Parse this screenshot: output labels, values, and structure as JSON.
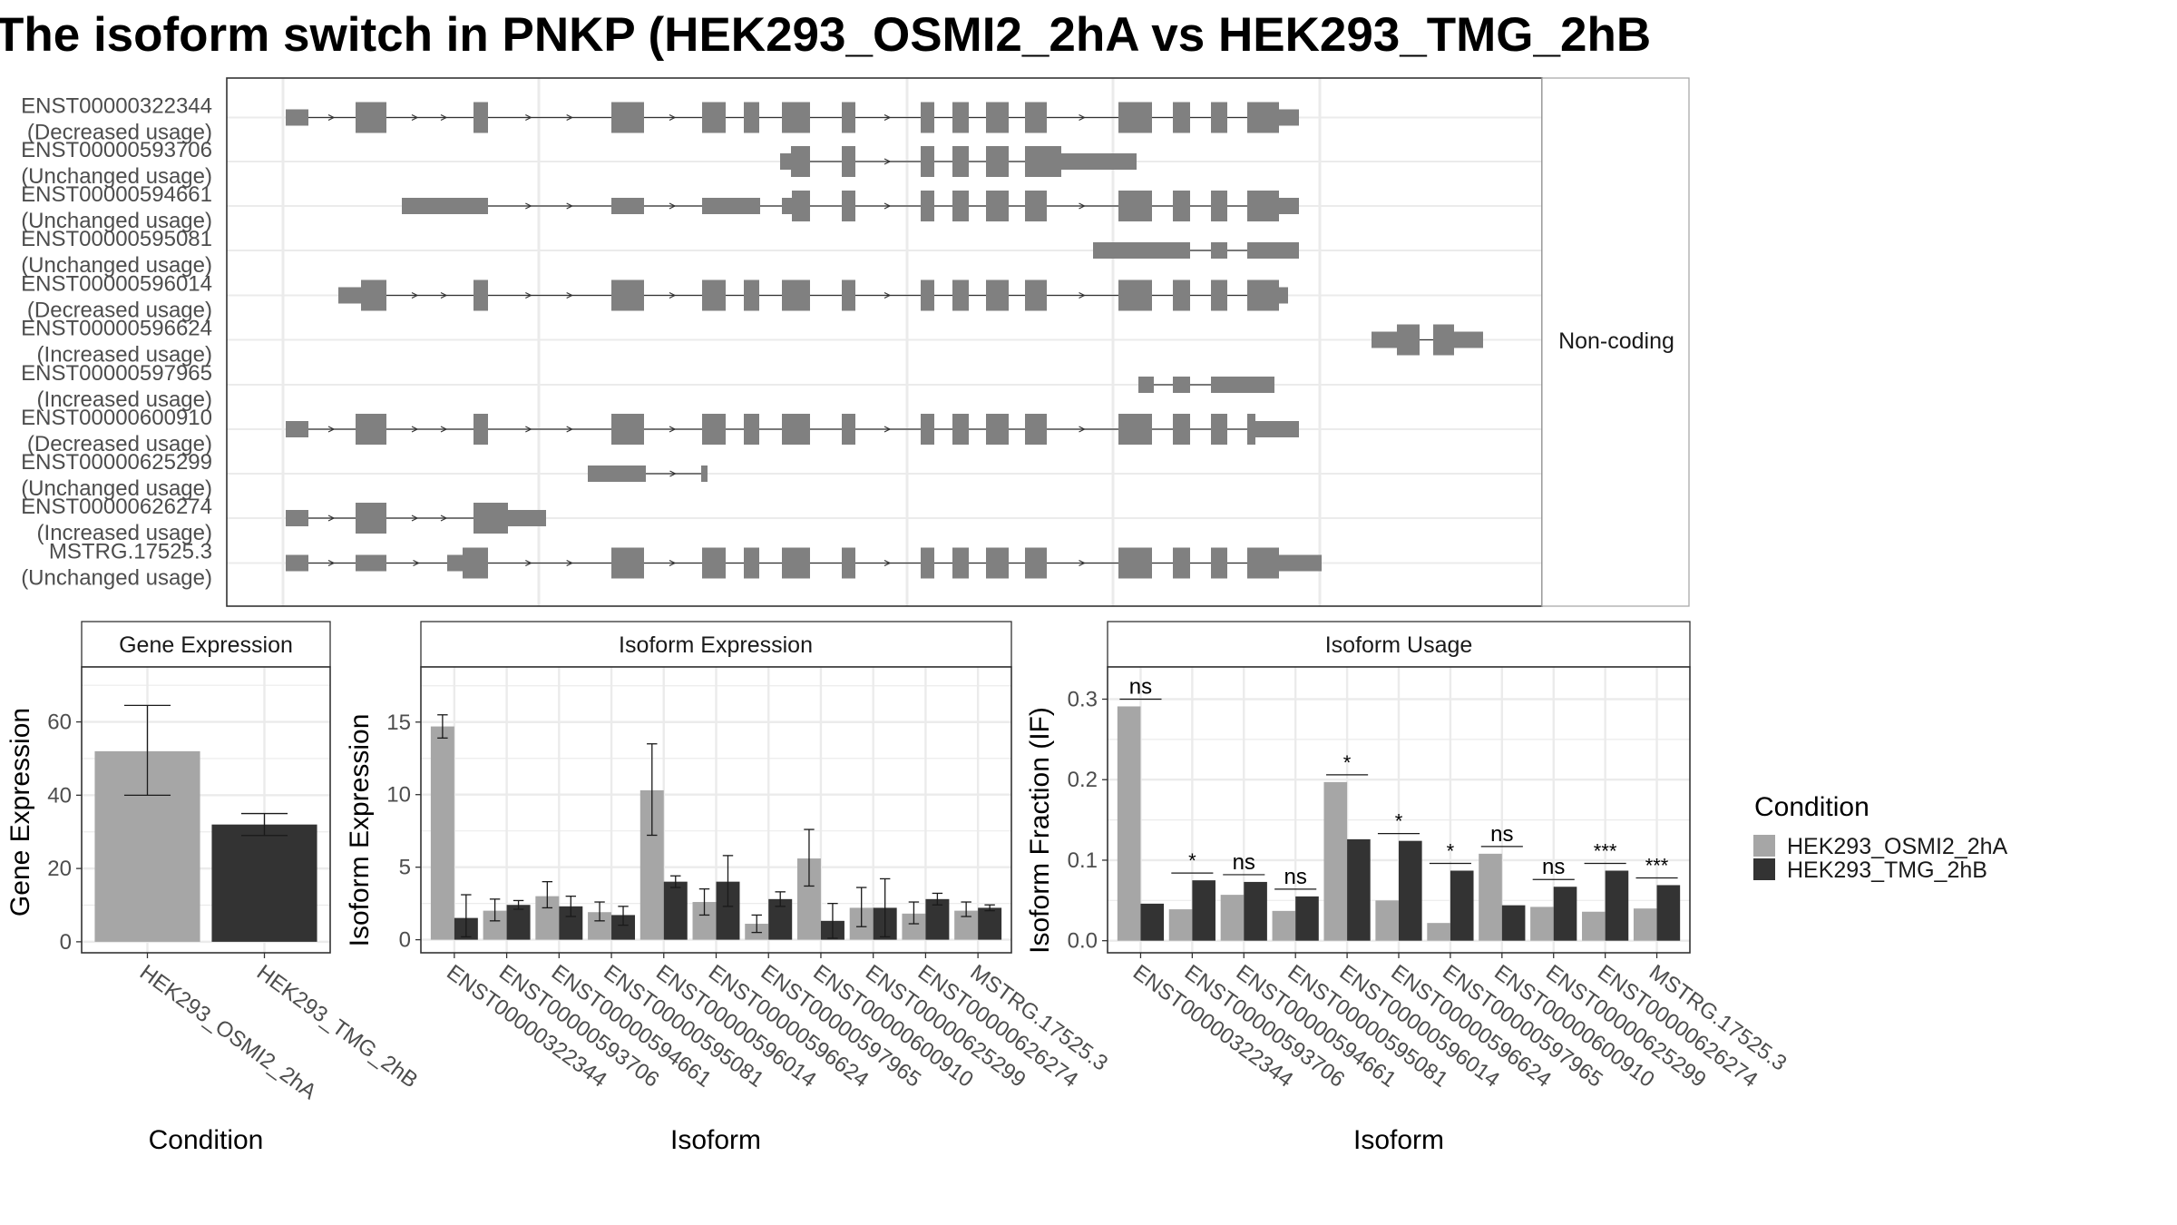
{
  "title": "The isoform switch in PNKP (HEK293_OSMI2_2hA vs HEK293_TMG_2hB",
  "colors": {
    "cond_a": "#a6a6a6",
    "cond_b": "#333333",
    "gene_model": "#808080",
    "grid": "#ebebeb",
    "panel_border": "#333333"
  },
  "chart_data": [
    {
      "type": "gene-structure",
      "facet_label": "Non-coding",
      "transcripts": [
        {
          "id": "ENST00000322344",
          "status": "(Decreased usage)"
        },
        {
          "id": "ENST00000593706",
          "status": "(Unchanged usage)"
        },
        {
          "id": "ENST00000594661",
          "status": "(Unchanged usage)"
        },
        {
          "id": "ENST00000595081",
          "status": "(Unchanged usage)"
        },
        {
          "id": "ENST00000596014",
          "status": "(Decreased usage)"
        },
        {
          "id": "ENST00000596624",
          "status": "(Increased usage)"
        },
        {
          "id": "ENST00000597965",
          "status": "(Increased usage)"
        },
        {
          "id": "ENST00000600910",
          "status": "(Decreased usage)"
        },
        {
          "id": "ENST00000625299",
          "status": "(Unchanged usage)"
        },
        {
          "id": "ENST00000626274",
          "status": "(Increased usage)"
        },
        {
          "id": "MSTRG.17525.3",
          "status": "(Unchanged usage)"
        }
      ]
    },
    {
      "type": "bar",
      "title": "Gene Expression",
      "xlabel": "Condition",
      "ylabel": "Gene Expression",
      "categories": [
        "HEK293_OSMI2_2hA",
        "HEK293_TMG_2hB"
      ],
      "values": [
        52,
        32
      ],
      "error_low": [
        40,
        29
      ],
      "error_high": [
        64.5,
        35
      ],
      "ylim": [
        -3,
        75
      ],
      "yticks": [
        0,
        20,
        40,
        60
      ]
    },
    {
      "type": "bar",
      "title": "Isoform Expression",
      "xlabel": "Isoform",
      "ylabel": "Isoform Expression",
      "categories": [
        "ENST00000322344",
        "ENST00000593706",
        "ENST00000594661",
        "ENST00000595081",
        "ENST00000596014",
        "ENST00000596624",
        "ENST00000597965",
        "ENST00000600910",
        "ENST00000625299",
        "ENST00000626274",
        "MSTRG.17525.3"
      ],
      "series": [
        {
          "name": "HEK293_OSMI2_2hA",
          "values": [
            14.7,
            2.0,
            3.0,
            1.9,
            10.3,
            2.6,
            1.1,
            5.6,
            2.2,
            1.8,
            2.0
          ],
          "error_low": [
            13.9,
            1.3,
            2.2,
            1.3,
            7.2,
            1.7,
            0.5,
            3.7,
            0.9,
            1.1,
            1.6
          ],
          "error_high": [
            15.5,
            2.8,
            4.0,
            2.6,
            13.5,
            3.5,
            1.7,
            7.6,
            3.6,
            2.6,
            2.6
          ]
        },
        {
          "name": "HEK293_TMG_2hB",
          "values": [
            1.5,
            2.4,
            2.3,
            1.7,
            4.0,
            4.0,
            2.8,
            1.3,
            2.2,
            2.8,
            2.2
          ],
          "error_low": [
            0.2,
            2.1,
            1.6,
            1.0,
            3.6,
            2.3,
            2.3,
            0.1,
            0.2,
            2.4,
            2.0
          ],
          "error_high": [
            3.1,
            2.7,
            3.0,
            2.3,
            4.4,
            5.8,
            3.3,
            2.5,
            4.2,
            3.2,
            2.4
          ]
        }
      ],
      "ylim": [
        -0.9,
        18.8
      ],
      "yticks": [
        0,
        5,
        10,
        15
      ]
    },
    {
      "type": "bar",
      "title": "Isoform Usage",
      "xlabel": "Isoform",
      "ylabel": "Isoform Fraction (IF)",
      "categories": [
        "ENST00000322344",
        "ENST00000593706",
        "ENST00000594661",
        "ENST00000595081",
        "ENST00000596014",
        "ENST00000596624",
        "ENST00000597965",
        "ENST00000600910",
        "ENST00000625299",
        "ENST00000626274",
        "MSTRG.17525.3"
      ],
      "series": [
        {
          "name": "HEK293_OSMI2_2hA",
          "values": [
            0.291,
            0.039,
            0.057,
            0.037,
            0.197,
            0.05,
            0.022,
            0.108,
            0.042,
            0.036,
            0.04
          ]
        },
        {
          "name": "HEK293_TMG_2hB",
          "values": [
            0.046,
            0.075,
            0.073,
            0.055,
            0.126,
            0.124,
            0.087,
            0.044,
            0.067,
            0.087,
            0.069
          ]
        }
      ],
      "significance": [
        "ns",
        "*",
        "ns",
        "ns",
        "*",
        "*",
        "*",
        "ns",
        "ns",
        "***",
        "***"
      ],
      "ylim": [
        -0.015,
        0.34
      ],
      "yticks": [
        0.0,
        0.1,
        0.2,
        0.3
      ],
      "ytick_labels": [
        "0.0",
        "0.1",
        "0.2",
        "0.3"
      ]
    }
  ],
  "legend": {
    "title": "Condition",
    "items": [
      "HEK293_OSMI2_2hA",
      "HEK293_TMG_2hB"
    ]
  }
}
